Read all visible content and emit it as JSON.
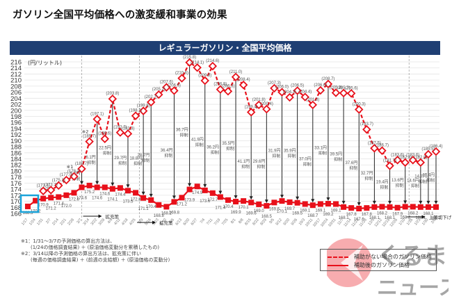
{
  "page": {
    "title": "ガソリン全国平均価格への激変緩和事業の効果",
    "banner": "レギュラーガソリン・全国平均価格"
  },
  "chart_data": {
    "type": "line",
    "title": "レギュラーガソリン・全国平均価格",
    "ylabel": "(円/リットル)",
    "xlabel": "",
    "ylim": [
      166,
      216
    ],
    "yticks": [
      166,
      168,
      170,
      172,
      174,
      176,
      178,
      180,
      182,
      184,
      186,
      188,
      190,
      192,
      194,
      196,
      198,
      200,
      202,
      204,
      206,
      208,
      210,
      212,
      214,
      216
    ],
    "grid": true,
    "categories": [
      "1/17",
      "1/24",
      "1/31",
      "2/7",
      "2/14",
      "2/21",
      "2/28",
      "3/7",
      "3/14",
      "3/22",
      "3/28",
      "4/4",
      "4/11",
      "4/18",
      "4/25",
      "5/9",
      "5/16",
      "5/23",
      "5/30",
      "6/6",
      "6/13",
      "6/20",
      "6/27",
      "7/4",
      "7/11",
      "7/19",
      "7/25",
      "8/1",
      "8/8",
      "8/15",
      "8/22",
      "8/29",
      "9/5",
      "9/12",
      "9/20",
      "9/26",
      "10/3",
      "10/11",
      "10/17",
      "10/24",
      "10/31",
      "11/7",
      "11/14",
      "11/21",
      "11/28",
      "12/5",
      "12/12",
      "12/19",
      "12/26",
      "1/10",
      "1/16",
      "1/23",
      "1/30",
      "2/6"
    ],
    "series": [
      {
        "name": "補助がない場合のガソリン価格",
        "style": "dashed",
        "color": "#e8101a",
        "values": [
          null,
          null,
          173.4,
          173.7,
          175.2,
          177.0,
          178.2,
          180.7,
          189.7,
          197.1,
          190.6,
          203.8,
          192.7,
          192.3,
          198.2,
          199.8,
          202.7,
          205.2,
          207.6,
          206.5,
          210.6,
          215.8,
          214.1,
          209.8,
          214.6,
          206.9,
          206.3,
          211.0,
          208.4,
          199.4,
          201.8,
          200.4,
          207.3,
          206.0,
          204.3,
          206.5,
          204.4,
          201.8,
          206.6,
          208.7,
          205.8,
          205.7,
          205.6,
          200.3,
          193.7,
          187.5,
          186.7,
          181.7,
          183.6,
          182.8,
          183.6,
          182.8,
          185.5,
          186.4
        ],
        "label_values": [
          "",
          "",
          "(173.4)",
          "(173.7)",
          "(175.2)",
          "(177.0)",
          "(178.2)",
          "(180.7)",
          "(189.7)",
          "(197.1)",
          "(190.6)",
          "(203.8)",
          "(192.7)",
          "(192.3)",
          "(198.2)",
          "(199.8)",
          "(202.7)",
          "(205.2)",
          "(207.6)",
          "(206.5)",
          "(210.6)",
          "(215.8)",
          "(214.1)",
          "(209.8)",
          "(214.6)",
          "(206.9)",
          "(206.3)",
          "(211.0)",
          "(208.4)",
          "(199.4)",
          "(201.8)",
          "(200.4)",
          "(207.3)",
          "(206.0)",
          "(204.3)",
          "(206.5)",
          "(204.4)",
          "(201.8)",
          "(206.6)",
          "(208.7)",
          "(205.8)",
          "(205.7)",
          "(205.6)",
          "(200.3)",
          "(193.7)",
          "(187.5)",
          "(186.7)",
          "(181.7)",
          "(183.6)",
          "(182.8)",
          "(183.6)",
          "(182.8)",
          "(185.5)",
          "(186.4)"
        ]
      },
      {
        "name": "補助後のガソリン価格",
        "style": "solid",
        "color": "#e8101a",
        "values": [
          168.3,
          170.2,
          170.9,
          171.2,
          171.4,
          172.0,
          172.8,
          174.6,
          175.2,
          174.6,
          174.6,
          174.1,
          174.4,
          173.5,
          172.8,
          171.1,
          170.4,
          168.8,
          168.2,
          169.8,
          171.2,
          173.9,
          174.9,
          173.6,
          172.7,
          171.4,
          170.4,
          169.9,
          170.1,
          169.6,
          169.0,
          168.5,
          169.6,
          170.1,
          169.7,
          169.5,
          169.1,
          168.7,
          169.1,
          169.2,
          169.1,
          168.1,
          167.8,
          167.6,
          167.8,
          168.1,
          168.2,
          168.1,
          167.9,
          168.2,
          168.2,
          168.1,
          168.1,
          168.1
        ],
        "label_values": [
          "168.3",
          "170.2",
          "170.9",
          "171.2",
          "171.4",
          "172.0",
          "172.8",
          "174.6",
          "175.2",
          "174.6",
          "174.6",
          "174.1",
          "174.4",
          "173.5",
          "172.8",
          "171.1",
          "170.4",
          "168.8",
          "168.2",
          "169.8",
          "171.2",
          "173.9",
          "174.9",
          "173.6",
          "172.7",
          "171.4",
          "170.4",
          "169.9",
          "170.1",
          "169.6",
          "169.0",
          "168.5",
          "169.6",
          "170.1",
          "169.7",
          "169.5",
          "169.1",
          "168.7",
          "169.1",
          "169.2",
          "169.1",
          "168.1",
          "167.8",
          "167.6",
          "167.8",
          "168.1",
          "168.2",
          "168.1",
          "167.9",
          "168.2",
          "168.2",
          "168.1",
          "168.1",
          "168.1"
        ]
      }
    ],
    "suppression_annotations": [
      {
        "x": "2/7",
        "text": "2.5円"
      },
      {
        "x": "3/7",
        "text": "5.0円 抑制"
      },
      {
        "x": "3/22",
        "text": "6.1円 抑制"
      },
      {
        "x": "4/4",
        "text": "22.5円 抑制"
      },
      {
        "x": "4/18",
        "text": "29.7円 抑制"
      },
      {
        "x": "5/9",
        "text": "18.8円 抑制"
      },
      {
        "x": "5/16",
        "text": "28.7円 抑制"
      },
      {
        "x": "6/6",
        "text": "36.4円 抑制"
      },
      {
        "x": "6/20",
        "text": "36.7円 抑制"
      },
      {
        "x": "7/4",
        "text": "41.9円 抑制"
      },
      {
        "x": "7/19",
        "text": "36.2円 抑制"
      },
      {
        "x": "8/1",
        "text": "35.5円 抑制"
      },
      {
        "x": "8/15",
        "text": "41.1円 抑制"
      },
      {
        "x": "8/29",
        "text": "29.6円 抑制"
      },
      {
        "x": "9/12",
        "text": "31.9円 抑制"
      },
      {
        "x": "9/26",
        "text": "35.9円 抑制"
      },
      {
        "x": "10/11",
        "text": "37.0円 抑制"
      },
      {
        "x": "10/24",
        "text": "33.1円 抑制"
      },
      {
        "x": "11/7",
        "text": "39.5円 抑制"
      },
      {
        "x": "11/21",
        "text": "37.6円 抑制"
      },
      {
        "x": "12/5",
        "text": "32.7円 抑制"
      },
      {
        "x": "12/19",
        "text": "19.4円 抑制"
      },
      {
        "x": "1/10",
        "text": "13.6円 抑制"
      },
      {
        "x": "1/23",
        "text": "14.6円 抑制"
      },
      {
        "x": "1/30",
        "text": "14.7円 抑制"
      },
      {
        "x": "2/6",
        "text": "17.4円 抑制"
      }
    ],
    "markers": [
      {
        "x": "2/28",
        "text": "※1"
      },
      {
        "x": "3/14",
        "text": "※2"
      }
    ],
    "phase_labels": [
      {
        "x": "3/7",
        "text": "拡充策"
      },
      {
        "x": "4/25",
        "text": "拡充策"
      },
      {
        "x": "1/10",
        "text": "上限切下げ"
      }
    ],
    "legend": {
      "position": "bottom-right",
      "entries": [
        "補助がない場合のガソリン価格",
        "補助後のガソリン価格"
      ]
    }
  },
  "notes": [
    "※1：1/31～3/7の予測価格の算出方法は、",
    "　　(1/24の価格調査結果) ＋ (原油価格変動分を累積したもの)",
    "※2：3/14以降の予測価格の算出方法は、拡充策に伴い",
    "　　(毎週の価格調査結果) ＋ (前週の支給額) ＋ (原油価格の変動分)"
  ],
  "watermark": {
    "text_line1": "くるまの",
    "text_line2": "ニュース",
    "brand_color": "#e8101a"
  }
}
